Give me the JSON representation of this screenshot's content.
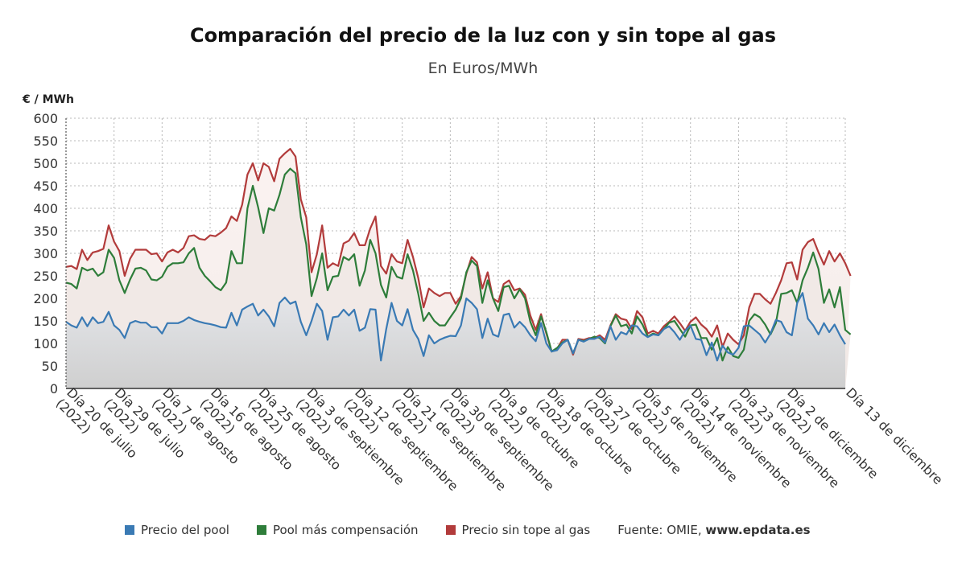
{
  "title": "Comparación del precio de la luz con y sin tope al gas",
  "subtitle": "En Euros/MWh",
  "legend": {
    "pool": "Precio del pool",
    "compensation": "Pool más compensación",
    "no_cap": "Precio sin tope al gas",
    "source_prefix": "Fuente: OMIE, ",
    "source_site": "www.epdata.es"
  },
  "colors": {
    "pool": "#3a7ab4",
    "compensation": "#2e7d3a",
    "no_cap": "#b23b3b"
  },
  "chart_data": {
    "type": "area",
    "ylabel": "€ / MWh",
    "ylim": [
      0,
      600
    ],
    "yticks": [
      0,
      50,
      100,
      150,
      200,
      250,
      300,
      350,
      400,
      450,
      500,
      550,
      600
    ],
    "grid": true,
    "legend_position": "bottom",
    "xtick_labels": [
      "Día 20 de julio (2022)",
      "Día 29 de julio (2022)",
      "Día 7 de agosto (2022)",
      "Día 16 de agosto (2022)",
      "Día 25 de agosto (2022)",
      "Día 3 de septiembre (2022)",
      "Día 12 de septiembre (2022)",
      "Día 21 de septiembre (2022)",
      "Día 30 de septiembre (2022)",
      "Día 9 de octubre (2022)",
      "Día 18 de octubre (2022)",
      "Día 27 de octubre (2022)",
      "Día 5 de noviembre (2022)",
      "Día 14 de noviembre (2022)",
      "Día 23 de noviembre (2022)",
      "Día 2 de diciembre (2022)",
      "Día 13 de diciembre"
    ],
    "series": [
      {
        "name": "Precio sin tope al gas",
        "values": [
          270,
          272,
          265,
          308,
          285,
          302,
          305,
          310,
          362,
          326,
          305,
          250,
          288,
          308,
          308,
          308,
          298,
          300,
          282,
          302,
          308,
          302,
          312,
          338,
          340,
          332,
          330,
          340,
          338,
          346,
          356,
          382,
          372,
          408,
          475,
          500,
          462,
          500,
          492,
          460,
          510,
          522,
          532,
          515,
          420,
          380,
          258,
          298,
          362,
          268,
          278,
          272,
          322,
          328,
          345,
          318,
          318,
          355,
          382,
          272,
          255,
          298,
          282,
          278,
          330,
          292,
          245,
          180,
          222,
          212,
          205,
          212,
          212,
          188,
          205,
          255,
          292,
          280,
          222,
          258,
          200,
          192,
          232,
          240,
          218,
          222,
          208,
          162,
          130,
          165,
          122,
          82,
          88,
          108,
          108,
          75,
          110,
          108,
          112,
          112,
          118,
          108,
          140,
          165,
          155,
          152,
          132,
          172,
          158,
          122,
          128,
          122,
          138,
          148,
          160,
          145,
          128,
          148,
          158,
          142,
          132,
          115,
          140,
          92,
          122,
          108,
          98,
          118,
          180,
          210,
          210,
          198,
          188,
          212,
          240,
          278,
          280,
          242,
          308,
          325,
          332,
          302,
          275,
          305,
          282,
          300,
          278,
          250
        ]
      },
      {
        "name": "Pool más compensación",
        "values": [
          235,
          232,
          222,
          268,
          262,
          266,
          250,
          258,
          308,
          290,
          240,
          212,
          242,
          266,
          268,
          262,
          242,
          240,
          248,
          270,
          278,
          278,
          280,
          300,
          312,
          268,
          250,
          238,
          225,
          218,
          235,
          305,
          278,
          278,
          400,
          450,
          402,
          345,
          400,
          395,
          430,
          475,
          488,
          478,
          380,
          320,
          205,
          245,
          300,
          218,
          248,
          250,
          292,
          285,
          298,
          228,
          262,
          330,
          300,
          230,
          202,
          270,
          248,
          244,
          298,
          262,
          210,
          150,
          168,
          150,
          140,
          140,
          158,
          175,
          200,
          258,
          284,
          272,
          190,
          240,
          200,
          172,
          225,
          228,
          200,
          220,
          200,
          148,
          118,
          160,
          125,
          82,
          90,
          102,
          108,
          78,
          108,
          105,
          110,
          115,
          112,
          100,
          138,
          162,
          138,
          142,
          122,
          160,
          142,
          115,
          122,
          118,
          132,
          146,
          150,
          132,
          115,
          140,
          142,
          112,
          112,
          86,
          112,
          62,
          92,
          72,
          68,
          86,
          150,
          165,
          158,
          142,
          120,
          145,
          210,
          212,
          218,
          190,
          240,
          268,
          302,
          265,
          190,
          220,
          180,
          225,
          130,
          120
        ]
      },
      {
        "name": "Precio del pool",
        "values": [
          148,
          140,
          135,
          158,
          138,
          158,
          145,
          148,
          170,
          140,
          130,
          112,
          145,
          150,
          146,
          146,
          136,
          136,
          122,
          145,
          145,
          145,
          150,
          158,
          152,
          148,
          145,
          143,
          140,
          136,
          135,
          168,
          140,
          175,
          182,
          188,
          162,
          175,
          160,
          138,
          190,
          202,
          188,
          193,
          148,
          118,
          150,
          188,
          172,
          108,
          158,
          160,
          175,
          162,
          175,
          128,
          135,
          176,
          175,
          62,
          132,
          190,
          150,
          140,
          176,
          130,
          110,
          72,
          118,
          100,
          108,
          113,
          117,
          116,
          140,
          200,
          190,
          176,
          112,
          155,
          120,
          115,
          163,
          166,
          135,
          148,
          136,
          118,
          105,
          145,
          100,
          82,
          85,
          100,
          108,
          78,
          108,
          104,
          110,
          110,
          115,
          102,
          138,
          108,
          125,
          120,
          140,
          138,
          122,
          114,
          120,
          118,
          132,
          138,
          125,
          108,
          128,
          140,
          110,
          108,
          74,
          102,
          62,
          95,
          80,
          75,
          90,
          138,
          140,
          130,
          120,
          102,
          122,
          152,
          148,
          125,
          118,
          190,
          212,
          155,
          140,
          120,
          145,
          125,
          142,
          118,
          98
        ]
      }
    ]
  }
}
